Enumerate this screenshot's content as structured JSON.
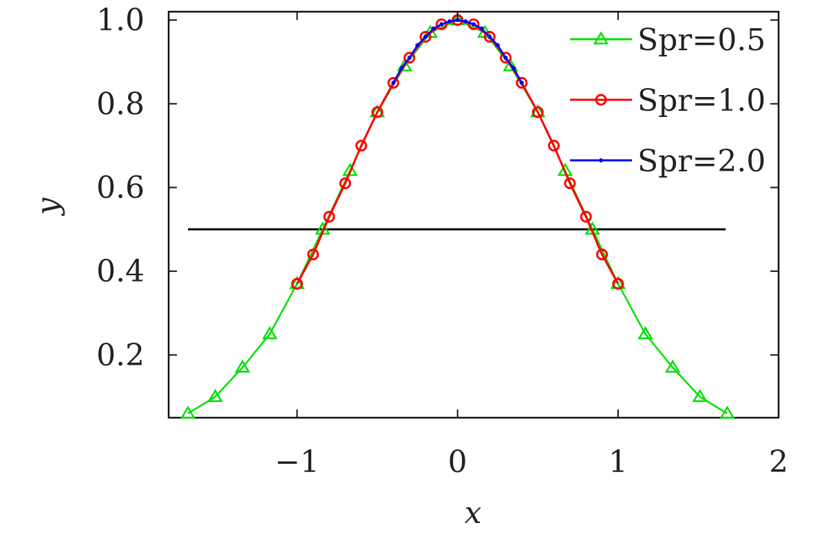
{
  "chart_data": {
    "type": "line",
    "xlabel": "x",
    "ylabel": "y",
    "xlim": [
      -1.8,
      2.0
    ],
    "ylim": [
      0.05,
      1.02
    ],
    "x_ticks": [
      -1,
      0,
      1,
      2
    ],
    "x_tick_labels": [
      "−1",
      "0",
      "1",
      "2"
    ],
    "y_ticks": [
      0.2,
      0.4,
      0.6,
      0.8,
      1.0
    ],
    "y_tick_labels": [
      "0.2",
      "0.4",
      "0.6",
      "0.8",
      "1.0"
    ],
    "legend_position": "top-right",
    "reference_line": {
      "y": 0.5,
      "x_from": -1.68,
      "x_to": 1.67,
      "color": "#000000"
    },
    "series": [
      {
        "name": "Spr=0.5",
        "color": "#00e000",
        "marker": "triangle",
        "x": [
          -1.68,
          -1.51,
          -1.34,
          -1.17,
          -1.0,
          -0.84,
          -0.67,
          -0.5,
          -0.33,
          -0.17,
          0.0,
          0.17,
          0.33,
          0.5,
          0.67,
          0.84,
          1.0,
          1.17,
          1.34,
          1.51,
          1.68
        ],
        "y": [
          0.06,
          0.1,
          0.17,
          0.25,
          0.37,
          0.5,
          0.64,
          0.78,
          0.89,
          0.97,
          1.0,
          0.97,
          0.89,
          0.78,
          0.64,
          0.5,
          0.37,
          0.25,
          0.17,
          0.1,
          0.06
        ]
      },
      {
        "name": "Spr=1.0",
        "color": "#ff0000",
        "marker": "circle",
        "x": [
          -1.0,
          -0.9,
          -0.8,
          -0.7,
          -0.6,
          -0.5,
          -0.4,
          -0.3,
          -0.2,
          -0.1,
          0.0,
          0.1,
          0.2,
          0.3,
          0.4,
          0.5,
          0.6,
          0.7,
          0.8,
          0.9,
          1.0
        ],
        "y": [
          0.37,
          0.44,
          0.53,
          0.61,
          0.7,
          0.78,
          0.85,
          0.91,
          0.96,
          0.99,
          1.0,
          0.99,
          0.96,
          0.91,
          0.85,
          0.78,
          0.7,
          0.61,
          0.53,
          0.44,
          0.37
        ]
      },
      {
        "name": "Spr=2.0",
        "color": "#0000ff",
        "marker": "dot",
        "x": [
          -0.4,
          -0.35,
          -0.3,
          -0.25,
          -0.2,
          -0.15,
          -0.1,
          -0.05,
          0.0,
          0.05,
          0.1,
          0.15,
          0.2,
          0.25,
          0.3,
          0.35,
          0.4
        ],
        "y": [
          0.85,
          0.885,
          0.91,
          0.94,
          0.96,
          0.98,
          0.99,
          0.997,
          1.0,
          0.997,
          0.99,
          0.98,
          0.96,
          0.94,
          0.91,
          0.885,
          0.85
        ]
      }
    ]
  }
}
